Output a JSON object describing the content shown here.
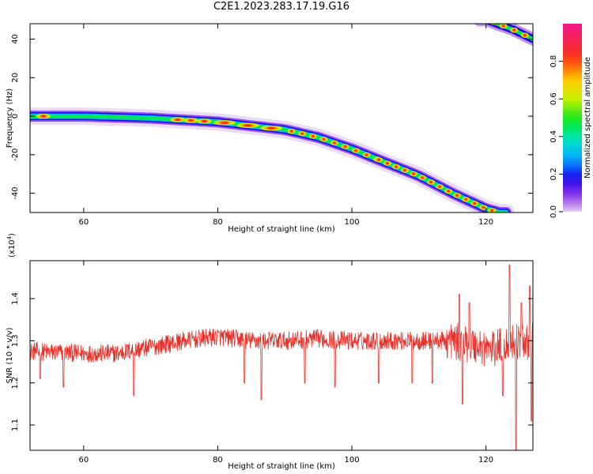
{
  "title": "C2E1.2023.283.17.19.G16",
  "chart_data": [
    {
      "type": "heatmap",
      "xlabel": "Height of straight line (km)",
      "ylabel": "Frequency (Hz)",
      "xlim": [
        52,
        127
      ],
      "ylim": [
        -50,
        48
      ],
      "xticks": [
        60,
        80,
        100,
        120
      ],
      "yticks": [
        40,
        20,
        0,
        -20,
        -40
      ],
      "ridge": {
        "x": [
          52,
          60,
          70,
          75,
          80,
          85,
          90,
          95,
          100,
          105,
          110,
          115,
          120,
          122
        ],
        "y": [
          0,
          0,
          -1,
          -2,
          -3,
          -5,
          -7,
          -11,
          -17,
          -24,
          -31,
          -40,
          -48,
          -50
        ]
      },
      "ridge2": {
        "x": [
          120,
          124,
          127
        ],
        "y": [
          50,
          45,
          40
        ]
      },
      "colorbar": {
        "label": "Normalized spectral amplitude",
        "ticks": [
          "0.0",
          "0.2",
          "0.4",
          "0.6",
          "0.8"
        ],
        "range": [
          0,
          1
        ]
      }
    },
    {
      "type": "line",
      "xlabel": "Height of straight line (km)",
      "ylabel": "SNR (10 * v/v)",
      "scale_label": "(x10",
      "scale_exp": "4",
      "scale_close": ")",
      "xlim": [
        52,
        127
      ],
      "ylim": [
        1.04,
        1.49
      ],
      "xticks": [
        60,
        80,
        100,
        120
      ],
      "yticks": [
        "1.1",
        "1.2",
        "1.3",
        "1.4"
      ],
      "color": "#e8302a",
      "baseline": [
        [
          52,
          1.275
        ],
        [
          60,
          1.27
        ],
        [
          65,
          1.27
        ],
        [
          70,
          1.285
        ],
        [
          75,
          1.3
        ],
        [
          80,
          1.31
        ],
        [
          85,
          1.3
        ],
        [
          90,
          1.3
        ],
        [
          95,
          1.305
        ],
        [
          100,
          1.3
        ],
        [
          105,
          1.3
        ],
        [
          110,
          1.3
        ],
        [
          115,
          1.3
        ],
        [
          118,
          1.29
        ],
        [
          121,
          1.28
        ],
        [
          124,
          1.3
        ],
        [
          127,
          1.3
        ]
      ],
      "dips": [
        [
          53.5,
          1.21
        ],
        [
          57,
          1.19
        ],
        [
          67.5,
          1.17
        ],
        [
          84,
          1.2
        ],
        [
          86.5,
          1.16
        ],
        [
          93,
          1.2
        ],
        [
          97.5,
          1.19
        ],
        [
          104,
          1.2
        ],
        [
          109,
          1.2
        ],
        [
          112,
          1.2
        ],
        [
          116.5,
          1.15
        ],
        [
          122.5,
          1.17
        ],
        [
          124.5,
          1.04
        ],
        [
          126.8,
          1.11
        ]
      ],
      "spikes": [
        [
          116,
          1.41
        ],
        [
          117.5,
          1.39
        ],
        [
          123.5,
          1.48
        ],
        [
          125.3,
          1.39
        ],
        [
          126.5,
          1.43
        ]
      ]
    }
  ]
}
